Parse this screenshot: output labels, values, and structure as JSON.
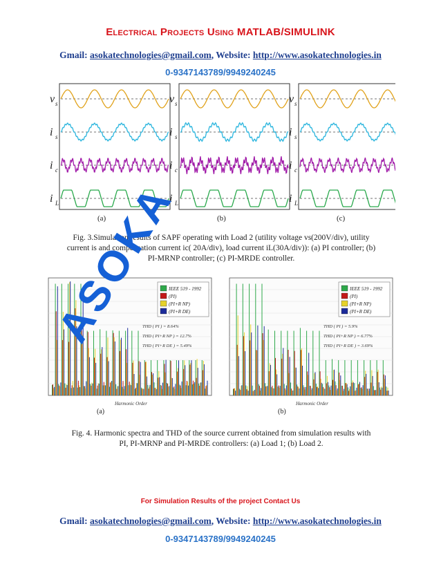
{
  "header": {
    "title": "Electrical Projects Using MATLAB/SIMULINK",
    "gmail_label": "Gmail:",
    "email": "asokatechnologies@gmail.com",
    "website_label": ", Website:",
    "website": "http://www.asokatechnologies.in",
    "phone": "0-9347143789/9949240245"
  },
  "figure3": {
    "panel_labels": [
      "(a)",
      "(b)",
      "(c)"
    ],
    "row_labels": [
      "v",
      "i",
      "i",
      "i"
    ],
    "row_subs": [
      "s",
      "s",
      "c",
      "L"
    ],
    "caption_line1": "Fig. 3.Simulation results of SAPF operating with Load 2 (utility voltage vs(200V/div), utility",
    "caption_line2": "current is and compensation current ic( 20A/div), load current iL(30A/div)): (a) PI controller; (b)",
    "caption_line3": "PI-MRNP controller; (c) PI-MRDE controller.",
    "colors": [
      "#e1a21a",
      "#2ab5de",
      "#a01aa8",
      "#27a84a"
    ]
  },
  "figure4": {
    "panel_labels": [
      "(a)",
      "(b)"
    ],
    "xlabel": "Harmonic Order",
    "legend": [
      "IEEE 519 - 1992",
      "(PI)",
      "(PI+R NP)",
      "(PI+R DE)"
    ],
    "thd_a": [
      "THD ( PI ) = 8.64%",
      "THD ( PI+R NP ) = 12.7%",
      "THD ( PI+R DE ) = 5.49%"
    ],
    "thd_b": [
      "THD ( PI ) = 5.9%",
      "THD ( PI+R NP ) = 6.77%",
      "THD ( PI+R DE ) = 3.69%"
    ],
    "colors": [
      "#2ea84a",
      "#c21818",
      "#e6d22a",
      "#1c2b9a"
    ],
    "caption_line1": "Fig. 4. Harmonic spectra and THD of the source current obtained from simulation results with",
    "caption_line2": "PI, PI-MRNP and PI-MRDE controllers: (a) Load 1; (b) Load 2."
  },
  "footer": {
    "note": "For Simulation Results of the project Contact Us",
    "gmail_label": "Gmail:",
    "email": "asokatechnologies@gmail.com",
    "website_label": ", Website:",
    "website": "http://www.asokatechnologies.in",
    "phone": "0-9347143789/9949240245"
  },
  "watermark": "ASOKA"
}
